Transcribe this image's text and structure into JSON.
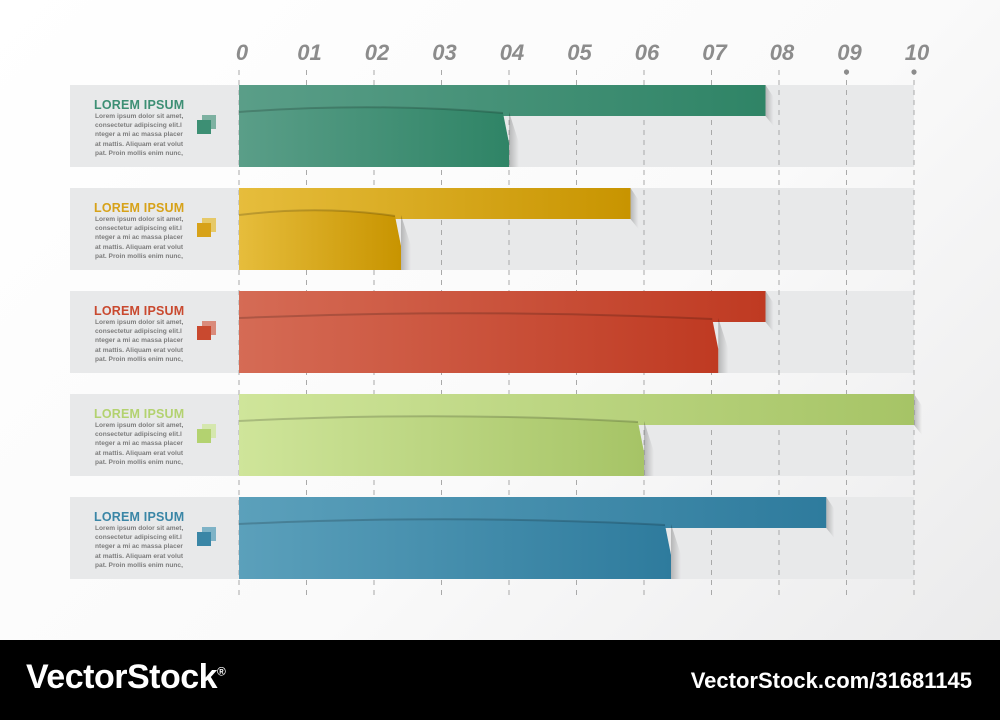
{
  "chart_data": {
    "type": "bar",
    "orientation": "horizontal",
    "xlim": [
      0,
      10
    ],
    "tick_labels": [
      "0",
      "01",
      "02",
      "03",
      "04",
      "05",
      "06",
      "07",
      "08",
      "09",
      "10"
    ],
    "categories": [
      "LOREM IPSUM",
      "LOREM IPSUM",
      "LOREM IPSUM",
      "LOREM IPSUM",
      "LOREM IPSUM"
    ],
    "category_body": "Lorem ipsum dolor sit amet,\nconsectetur adipiscing elit.l\nnteger a mi ac massa placer\nat mattis. Aliquam erat volut\npat. Proin mollis enim nunc,",
    "series": [
      {
        "values": [
          7.8,
          5.8,
          7.8,
          10.0,
          8.7
        ]
      },
      {
        "values": [
          4.0,
          2.4,
          7.1,
          6.0,
          6.4
        ]
      }
    ],
    "colors": [
      "#3d8f74",
      "#d7a219",
      "#c9492f",
      "#b3d270",
      "#3a86a6"
    ],
    "gradients": [
      [
        "#5a9e88",
        "#2f8466"
      ],
      [
        "#e6bd3c",
        "#c89400"
      ],
      [
        "#d56b55",
        "#bf3a22"
      ],
      [
        "#cfe59a",
        "#a6c466"
      ],
      [
        "#5ba0bb",
        "#2e7b9d"
      ]
    ],
    "grid": "vertical dashed",
    "dot_markers_at": [
      9,
      10
    ]
  },
  "footer": {
    "brand": "VectorStock",
    "brand_mark": "®",
    "image_id": "VectorStock.com/31681145"
  }
}
